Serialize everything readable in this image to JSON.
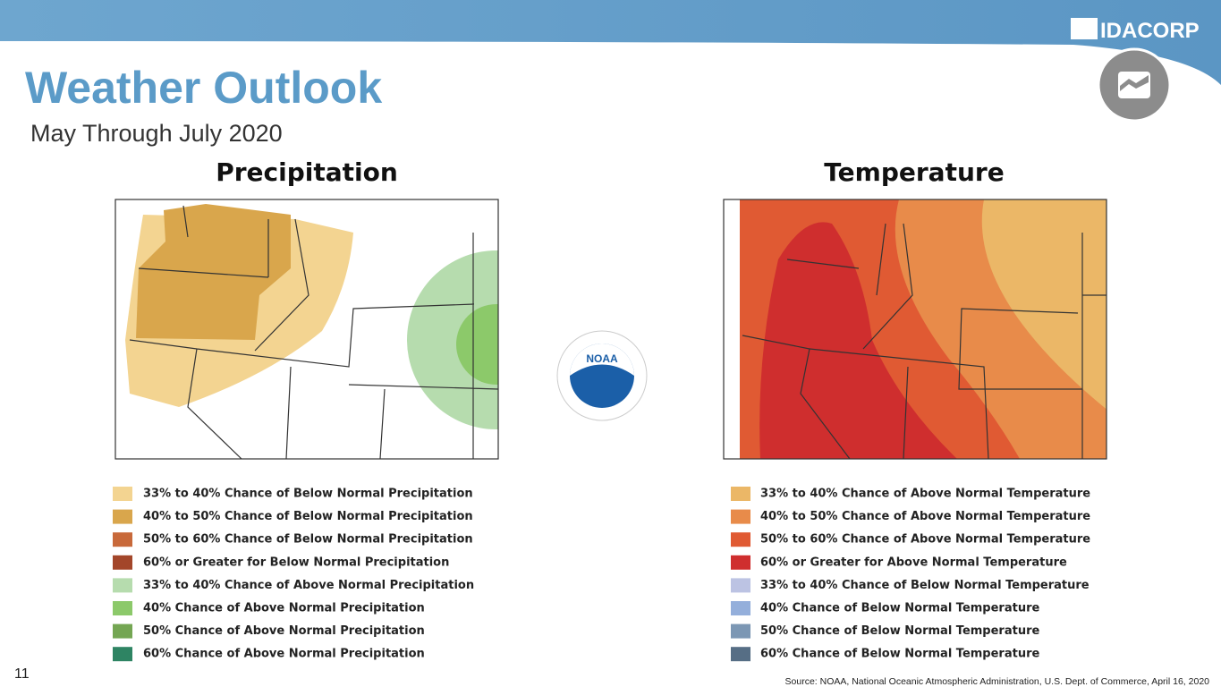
{
  "header": {
    "title": "Weather Outlook",
    "subtitle": "May Through July 2020",
    "logo": "IDACORP"
  },
  "maps": [
    {
      "title": "Precipitation",
      "legend": [
        {
          "label": "33% to 40% Chance of Below Normal Precipitation",
          "color": "#f3d491"
        },
        {
          "label": "40% to 50% Chance of Below Normal Precipitation",
          "color": "#d9a64c"
        },
        {
          "label": "50% to 60% Chance of Below Normal Precipitation",
          "color": "#c8693a"
        },
        {
          "label": "60% or Greater for Below Normal Precipitation",
          "color": "#a3462a"
        },
        {
          "label": "33% to 40% Chance of Above Normal Precipitation",
          "color": "#b6dcae"
        },
        {
          "label": "40% Chance of Above Normal Precipitation",
          "color": "#8cc96a"
        },
        {
          "label": "50% Chance of Above Normal Precipitation",
          "color": "#74a653"
        },
        {
          "label": "60% Chance of Above Normal Precipitation",
          "color": "#2e8463"
        }
      ]
    },
    {
      "title": "Temperature",
      "legend": [
        {
          "label": "33% to 40% Chance of Above Normal Temperature",
          "color": "#ebb767"
        },
        {
          "label": "40% to 50% Chance of Above Normal Temperature",
          "color": "#e88b4a"
        },
        {
          "label": "50% to 60% Chance of Above Normal Temperature",
          "color": "#e05a33"
        },
        {
          "label": "60% or Greater for Above Normal Temperature",
          "color": "#cf2e2e"
        },
        {
          "label": "33% to 40% Chance of Below Normal Temperature",
          "color": "#bcc3e3"
        },
        {
          "label": "40% Chance of Below Normal Temperature",
          "color": "#94afdb"
        },
        {
          "label": "50% Chance of Below Normal Temperature",
          "color": "#7c97b4"
        },
        {
          "label": "60% Chance of Below Normal Temperature",
          "color": "#566e85"
        }
      ]
    }
  ],
  "noaa": "NOAA",
  "page_number": "11",
  "source": "Source: NOAA, National Oceanic Atmospheric Administration, U.S. Dept. of Commerce, April 16, 2020"
}
